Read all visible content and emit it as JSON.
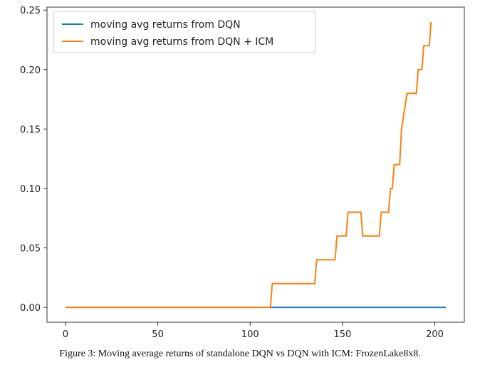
{
  "chart_data": {
    "type": "line",
    "title": "",
    "xlabel": "",
    "ylabel": "",
    "xlim": [
      -10,
      216
    ],
    "ylim": [
      -0.0125,
      0.2525
    ],
    "xticks": [
      0,
      50,
      100,
      150,
      200
    ],
    "yticks": [
      0.0,
      0.05,
      0.1,
      0.15,
      0.2,
      0.25
    ],
    "xtick_labels": [
      "0",
      "50",
      "100",
      "150",
      "200"
    ],
    "ytick_labels": [
      "0.00",
      "0.05",
      "0.10",
      "0.15",
      "0.20",
      "0.25"
    ],
    "grid": false,
    "legend_position": "top-left",
    "series": [
      {
        "name": "moving avg returns from DQN",
        "color": "#1f77b4",
        "x": [
          0,
          206
        ],
        "y": [
          0.0,
          0.0
        ]
      },
      {
        "name": "moving avg returns from DQN + ICM",
        "color": "#ff7f0e",
        "x": [
          0,
          111,
          112,
          135,
          136,
          146,
          147,
          152,
          153,
          160,
          161,
          170,
          171,
          175,
          176,
          177,
          178,
          181,
          182,
          185,
          186,
          190,
          191,
          193,
          194,
          197,
          198
        ],
        "y": [
          0.0,
          0.0,
          0.02,
          0.02,
          0.04,
          0.04,
          0.06,
          0.06,
          0.08,
          0.08,
          0.06,
          0.06,
          0.08,
          0.08,
          0.1,
          0.1,
          0.12,
          0.12,
          0.15,
          0.18,
          0.18,
          0.18,
          0.2,
          0.2,
          0.22,
          0.22,
          0.24
        ]
      }
    ]
  },
  "caption": "Figure 3: Moving average returns of standalone DQN vs DQN with ICM: FrozenLake8x8."
}
